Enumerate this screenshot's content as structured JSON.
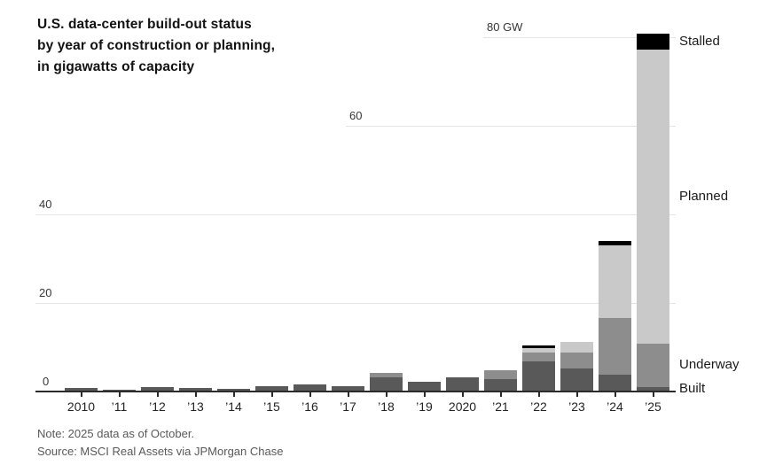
{
  "title_lines": [
    "U.S. data-center build-out status",
    "by year of construction or planning,",
    "in gigawatts of capacity"
  ],
  "note": "Note: 2025 data as of October.",
  "source": "Source: MSCI Real Assets via JPMorgan Chase",
  "colors": {
    "built": "#595959",
    "underway": "#8d8d8d",
    "planned": "#c9c9c9",
    "stalled": "#000000",
    "gridline": "#e4e4e4",
    "axis": "#2b2b2b",
    "text": "#121212",
    "muted_text": "#595959"
  },
  "chart_data": {
    "type": "bar",
    "stacked": true,
    "unit": "GW",
    "title": "U.S. data-center build-out status by year of construction or planning, in gigawatts of capacity",
    "xlabel": "",
    "ylabel": "gigawatts of capacity",
    "ylim": [
      0,
      84
    ],
    "grid": "partial-horizontal",
    "legend_position": "right-of-last-bar",
    "categories": [
      "2010",
      "’11",
      "’12",
      "’13",
      "’14",
      "’15",
      "’16",
      "’17",
      "’18",
      "’19",
      "2020",
      "’21",
      "’22",
      "’23",
      "’24",
      "’25"
    ],
    "series": [
      {
        "name": "Built",
        "color": "#595959",
        "values": [
          0.9,
          0.5,
          1.1,
          0.8,
          0.7,
          1.2,
          1.7,
          1.3,
          3.2,
          2.3,
          3.2,
          2.9,
          6.8,
          5.2,
          3.9,
          1.1
        ]
      },
      {
        "name": "Underway",
        "color": "#8d8d8d",
        "values": [
          0,
          0,
          0,
          0,
          0,
          0,
          0,
          0,
          1.0,
          0,
          0,
          1.9,
          2.1,
          3.7,
          12.7,
          9.7
        ]
      },
      {
        "name": "Planned",
        "color": "#c9c9c9",
        "values": [
          0,
          0,
          0,
          0,
          0,
          0,
          0,
          0,
          0,
          0,
          0,
          0,
          1.0,
          2.3,
          16.5,
          66.5
        ]
      },
      {
        "name": "Stalled",
        "color": "#000000",
        "values": [
          0,
          0,
          0,
          0,
          0,
          0,
          0,
          0,
          0,
          0,
          0,
          0,
          0.6,
          0,
          0.9,
          3.5
        ]
      }
    ],
    "yticks": [
      {
        "value": 0,
        "label": "0"
      },
      {
        "value": 20,
        "label": "20"
      },
      {
        "value": 40,
        "label": "40"
      },
      {
        "value": 60,
        "label": "60"
      },
      {
        "value": 80,
        "label": "80 GW"
      }
    ],
    "legend": [
      {
        "label": "Stalled"
      },
      {
        "label": "Planned"
      },
      {
        "label": "Underway"
      },
      {
        "label": "Built"
      }
    ]
  }
}
